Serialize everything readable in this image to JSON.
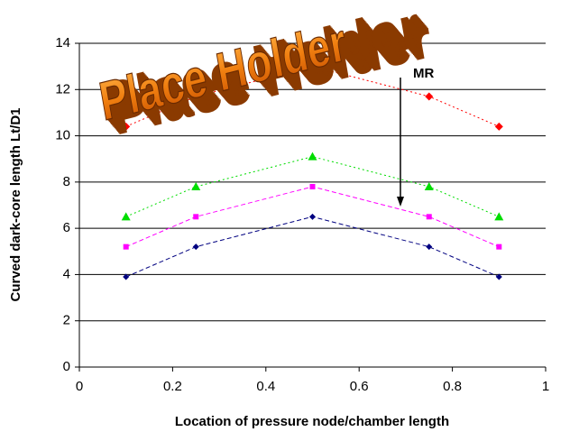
{
  "chart_data": {
    "type": "line",
    "x_label": "Location of pressure node/chamber length",
    "y_label": "Curved dark-core length Lt/D1",
    "annotation": "MR",
    "overlay_text": "Place Holder",
    "x": [
      0.1,
      0.25,
      0.5,
      0.75,
      0.9
    ],
    "series": [
      {
        "color": "#000080",
        "marker": "diamond",
        "values": [
          3.9,
          5.2,
          6.5,
          5.2,
          3.9
        ]
      },
      {
        "color": "#ff00ff",
        "marker": "square",
        "values": [
          5.2,
          6.5,
          7.8,
          6.5,
          5.2
        ]
      },
      {
        "color": "#00dd00",
        "marker": "triangle",
        "values": [
          6.5,
          7.8,
          9.1,
          7.8,
          6.5
        ]
      },
      {
        "color": "#ff0000",
        "marker": "diamond",
        "values": [
          10.4,
          11.7,
          13.0,
          11.7,
          10.4
        ]
      }
    ],
    "xlim": [
      0,
      1
    ],
    "xticks": [
      0,
      0.2,
      0.4,
      0.6,
      0.8,
      1
    ],
    "ylim": [
      0,
      14
    ],
    "yticks": [
      0,
      2,
      4,
      6,
      8,
      10,
      12,
      14
    ],
    "grid": true
  }
}
